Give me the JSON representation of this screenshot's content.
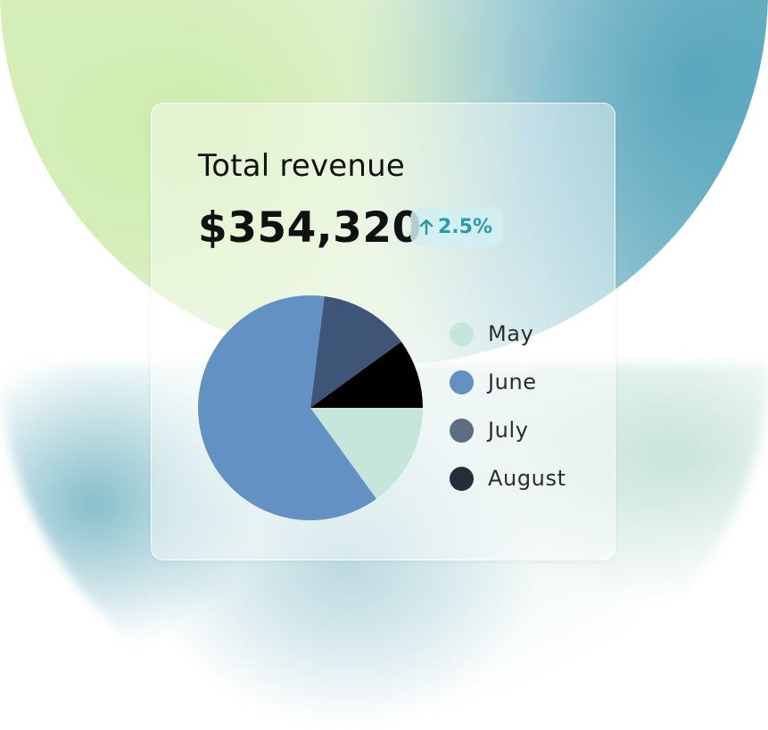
{
  "card": {
    "title": "Total revenue",
    "amount": "$354,320",
    "delta": {
      "direction": "up",
      "value": "2.5%",
      "color": "#2a9aaa",
      "icon": "arrow-up-icon"
    }
  },
  "chart_data": {
    "type": "pie",
    "categories": [
      "May",
      "June",
      "July",
      "August"
    ],
    "values": [
      15,
      62,
      13,
      10
    ],
    "colors": [
      "#c6e6dc",
      "#6391c4",
      "#3e5577",
      "#000000"
    ],
    "legend_position": "right"
  },
  "legend": {
    "items": [
      {
        "label": "May",
        "color": "#c6e6dc"
      },
      {
        "label": "June",
        "color": "#6391c4"
      },
      {
        "label": "July",
        "color": "#5f6d80"
      },
      {
        "label": "August",
        "color": "#232e39"
      }
    ]
  }
}
